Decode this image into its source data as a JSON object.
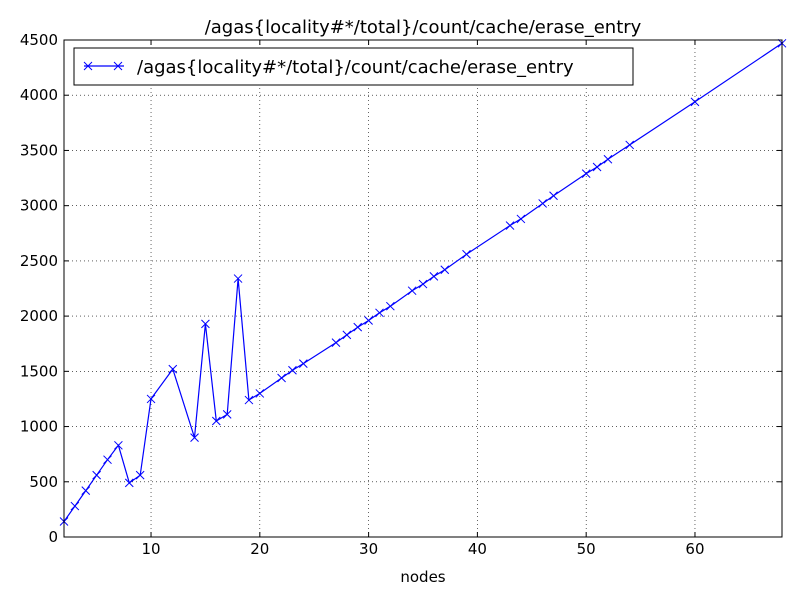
{
  "chart_data": {
    "type": "line",
    "title": "/agas{locality#*/total}/count/cache/erase_entry",
    "xlabel": "nodes",
    "ylabel": "",
    "xlim": [
      2,
      68
    ],
    "ylim": [
      0,
      4500
    ],
    "xticks": [
      10,
      20,
      30,
      40,
      50,
      60
    ],
    "yticks": [
      0,
      500,
      1000,
      1500,
      2000,
      2500,
      3000,
      3500,
      4000,
      4500
    ],
    "grid": true,
    "legend": "top-left",
    "series": [
      {
        "name": "/agas{locality#*/total}/count/cache/erase_entry",
        "color": "#0000ff",
        "marker": "x",
        "x": [
          2,
          3,
          4,
          5,
          6,
          7,
          8,
          9,
          10,
          12,
          14,
          15,
          16,
          17,
          18,
          19,
          20,
          22,
          23,
          24,
          27,
          28,
          29,
          30,
          31,
          32,
          34,
          35,
          36,
          37,
          39,
          43,
          44,
          46,
          47,
          50,
          51,
          52,
          54,
          60,
          68
        ],
        "y": [
          140,
          280,
          420,
          560,
          700,
          830,
          490,
          560,
          1250,
          1520,
          900,
          1930,
          1050,
          1110,
          2340,
          1240,
          1300,
          1440,
          1510,
          1570,
          1760,
          1830,
          1900,
          1960,
          2030,
          2090,
          2230,
          2290,
          2360,
          2420,
          2560,
          2820,
          2880,
          3020,
          3090,
          3290,
          3350,
          3420,
          3550,
          3940,
          4470
        ]
      }
    ]
  }
}
